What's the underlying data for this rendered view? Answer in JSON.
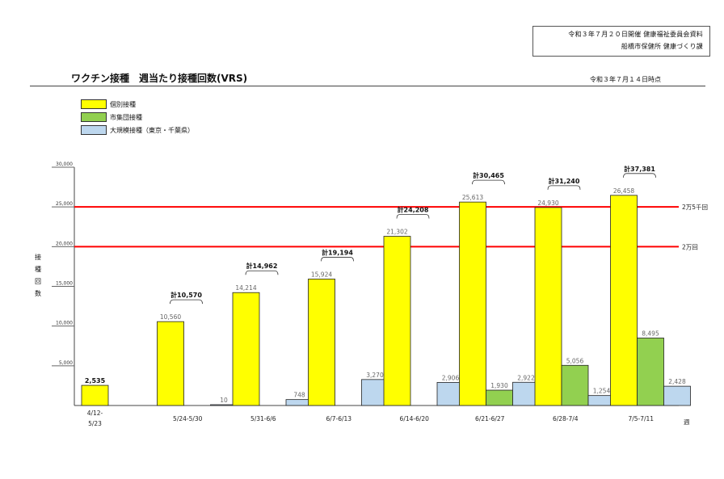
{
  "header_box": {
    "line1": "令和３年７月２０日開催 健康福祉委員会資料",
    "line2": "船橋市保健所 健康づくり課"
  },
  "title": "ワクチン接種　週当たり接種回数(VRS)",
  "as_of": "令和３年７月１４日時点",
  "colors": {
    "individual": "#FFFF00",
    "group": "#92D050",
    "mass": "#BDD7EE",
    "refline": "#FF0000"
  },
  "chart_data": {
    "type": "bar",
    "title": "ワクチン接種　週当たり接種回数(VRS)",
    "ylabel": "接種回数",
    "xlabel": "週",
    "ylim": [
      0,
      30000
    ],
    "yticks": [
      "5,000",
      "10,000",
      "15,000",
      "20,000",
      "25,000",
      "30,000"
    ],
    "categories": [
      "4/12-5/23",
      "5/24-5/30",
      "5/31-6/6",
      "6/7-6/13",
      "6/14-6/20",
      "6/21-6/27",
      "6/28-7/4",
      "7/5-7/11"
    ],
    "series": [
      {
        "name": "個別接種",
        "values": [
          2535,
          10560,
          14214,
          15924,
          21302,
          25613,
          24930,
          26458
        ],
        "labels": [
          "2,535",
          "10,560",
          "14,214",
          "15,924",
          "21,302",
          "25,613",
          "24,930",
          "26,458"
        ]
      },
      {
        "name": "市集団接種",
        "values": [
          null,
          null,
          null,
          null,
          null,
          1930,
          5056,
          8495
        ],
        "labels": [
          "",
          "",
          "",
          "",
          "",
          "1,930",
          "5,056",
          "8,495"
        ]
      },
      {
        "name": "大規模接種（東京・千葉県）",
        "values": [
          null,
          10,
          748,
          3270,
          2906,
          2922,
          1254,
          2428
        ],
        "labels": [
          "",
          "10",
          "748",
          "3,270",
          "2,906",
          "2,922",
          "1,254",
          "2,428"
        ]
      }
    ],
    "totals": [
      "",
      "計10,570",
      "計14,962",
      "計19,194",
      "計24,208",
      "計30,465",
      "計31,240",
      "計37,381"
    ],
    "reference_lines": [
      {
        "value": 25000,
        "label": "2万5千回"
      },
      {
        "value": 20000,
        "label": "2万回"
      }
    ],
    "legend_position": "top-left",
    "grid": false
  }
}
